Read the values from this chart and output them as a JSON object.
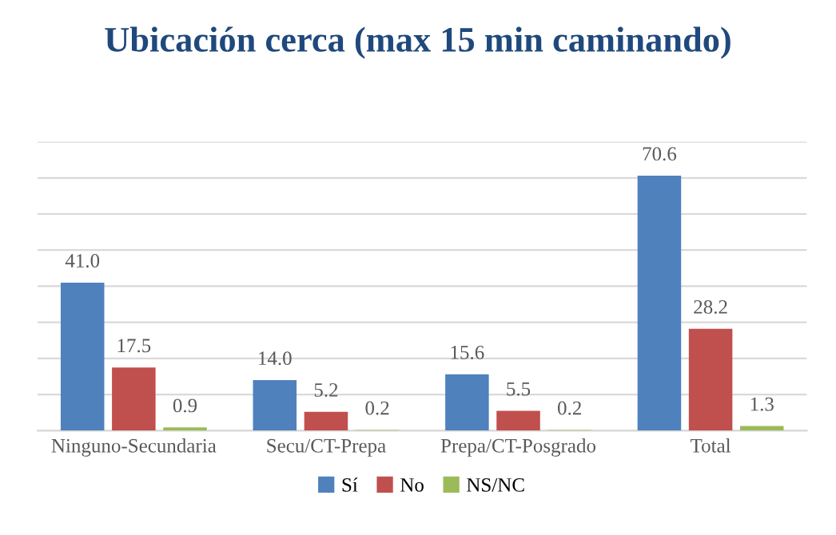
{
  "chart_data": {
    "type": "bar",
    "title": "Ubicación cerca (max 15 min caminando)",
    "categories": [
      "Ninguno-Secundaria",
      "Secu/CT-Prepa",
      "Prepa/CT-Posgrado",
      "Total"
    ],
    "series": [
      {
        "name": "Sí",
        "color": "#4f81bd",
        "values": [
          41.0,
          14.0,
          15.6,
          70.6
        ],
        "value_labels": [
          "41.0",
          "14.0",
          "15.6",
          "70.6"
        ]
      },
      {
        "name": "No",
        "color": "#c0504d",
        "values": [
          17.5,
          5.2,
          5.5,
          28.2
        ],
        "value_labels": [
          "17.5",
          "5.2",
          "5.5",
          "28.2"
        ]
      },
      {
        "name": "NS/NC",
        "color": "#9bbb59",
        "values": [
          0.9,
          0.2,
          0.2,
          1.3
        ],
        "value_labels": [
          "0.9",
          "0.2",
          "0.2",
          "1.3"
        ]
      }
    ],
    "ylim": [
      0,
      80
    ],
    "yticks": [
      {
        "value": 0,
        "label": null
      },
      {
        "value": 10,
        "label": null
      },
      {
        "value": 20,
        "label": null
      },
      {
        "value": 30,
        "label": null
      },
      {
        "value": 40,
        "label": null
      },
      {
        "value": 50,
        "label": null
      },
      {
        "value": 60,
        "label": null
      },
      {
        "value": 70,
        "label": null
      },
      {
        "value": 80,
        "label": null
      }
    ],
    "tick_labels": "x",
    "grid": "y",
    "legend": "bottom"
  }
}
